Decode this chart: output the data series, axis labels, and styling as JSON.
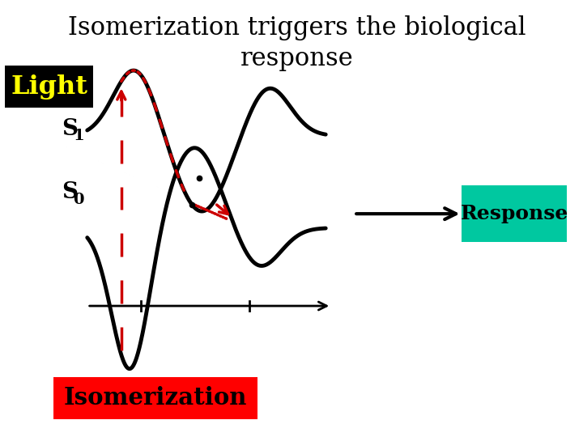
{
  "title_line1": "Isomerization triggers the biological",
  "title_line2": "response",
  "title_fontsize": 22,
  "title_font": "serif",
  "light_label": "Light",
  "light_bg": "#000000",
  "light_fg": "#ffff00",
  "s1_label": "S",
  "s0_label": "S",
  "response_label": "Response",
  "response_bg": "#00c8a0",
  "response_fg": "#000000",
  "isomerization_label": "Isomerization",
  "isomerization_bg": "#ff0000",
  "isomerization_fg": "#000000",
  "bg_color": "#ffffff",
  "curve_color": "#000000",
  "arrow_color": "#cc0000"
}
